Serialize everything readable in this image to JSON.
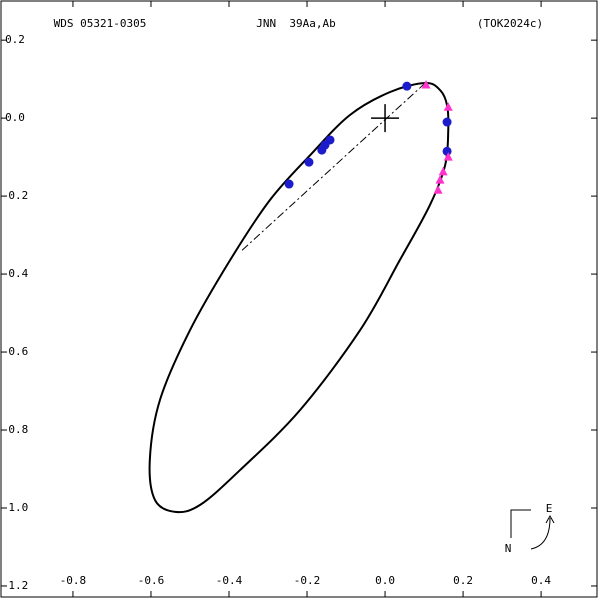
{
  "chart_data": {
    "type": "orbit",
    "header": [
      "WDS 05321-0305",
      "JNN  39Aa,Ab",
      "(TOK2024c)"
    ],
    "xlim": [
      -0.987,
      0.551
    ],
    "ylim": [
      -1.236,
      0.303
    ],
    "xticks": [
      -0.8,
      -0.6,
      -0.4,
      -0.2,
      {
        "value": 0,
        "label": "0.0"
      },
      0.2,
      0.4
    ],
    "yticks": [
      0.2,
      {
        "value": 0,
        "label": "0.0"
      },
      -0.2,
      -0.4,
      -0.6,
      -0.8,
      {
        "value": -1,
        "label": "-1.0"
      },
      -1.2
    ],
    "orbit": {
      "color": "#000000",
      "x": [
        0.103,
        0.141,
        0.159,
        0.162,
        0.154,
        0.115,
        0.038,
        -0.064,
        -0.218,
        -0.372,
        -0.474,
        -0.538,
        -0.59,
        -0.603,
        -0.577,
        -0.5,
        -0.397,
        -0.295,
        -0.192,
        -0.09,
        0.013
      ],
      "y": [
        0.09,
        0.072,
        0.033,
        -0.031,
        -0.121,
        -0.223,
        -0.364,
        -0.544,
        -0.749,
        -0.903,
        -0.992,
        -1.01,
        -0.979,
        -0.877,
        -0.723,
        -0.544,
        -0.364,
        -0.21,
        -0.095,
        0.008,
        0.067
      ]
    },
    "node_line": {
      "x": [
        0.103,
        -0.372
      ],
      "y": [
        0.09,
        -0.344
      ]
    },
    "primary": {
      "x": 0,
      "y": 0
    },
    "series": [
      {
        "marker": "circle",
        "color": "#1c1ccc",
        "x": [
          0.056,
          0.159,
          0.159,
          -0.141,
          -0.154,
          -0.162,
          -0.195,
          -0.246
        ],
        "y": [
          0.082,
          -0.01,
          -0.085,
          -0.056,
          -0.069,
          -0.082,
          -0.113,
          -0.169
        ]
      },
      {
        "marker": "triangle",
        "color": "#ff33cc",
        "x": [
          0.105,
          0.162,
          0.162,
          0.149,
          0.141,
          0.136
        ],
        "y": [
          0.085,
          0.028,
          -0.1,
          -0.138,
          -0.159,
          -0.185
        ]
      }
    ],
    "compass": [
      "E",
      "N"
    ]
  }
}
